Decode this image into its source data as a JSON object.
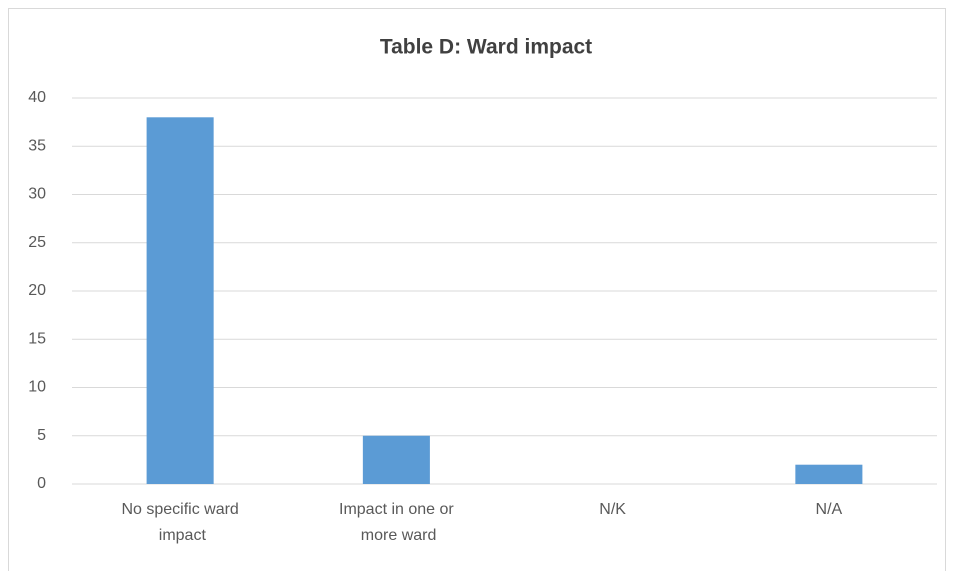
{
  "chart_data": {
    "type": "bar",
    "title": "Table D: Ward impact",
    "categories": [
      "No specific ward impact",
      "Impact in one or more ward",
      "N/K",
      "N/A"
    ],
    "values": [
      38,
      5,
      0,
      2
    ],
    "color": "#5b9bd5",
    "ylim": [
      0,
      40
    ],
    "yticks": [
      0,
      5,
      10,
      15,
      20,
      25,
      30,
      35,
      40
    ],
    "grid": true
  }
}
